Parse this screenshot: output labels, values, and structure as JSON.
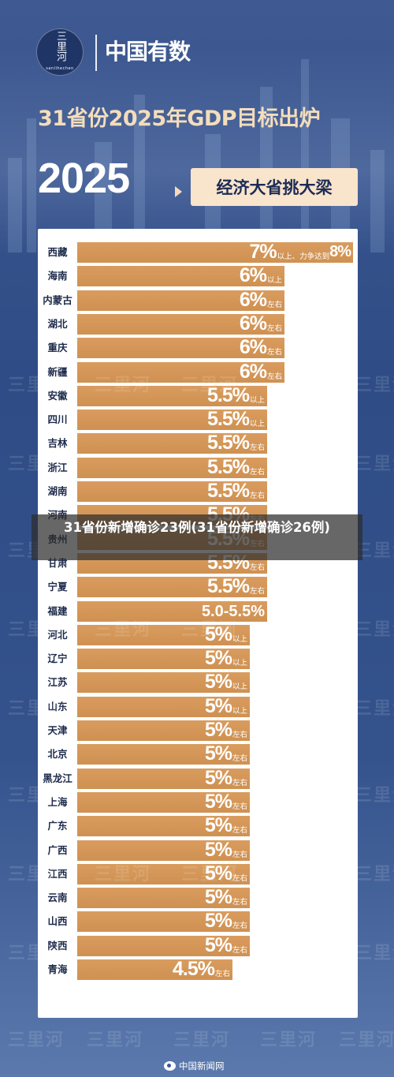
{
  "header": {
    "logo_text": "三里河",
    "logo_sub": "sanlihechen",
    "brand": "中国有数"
  },
  "headline": "31省份2025年GDP目标出炉",
  "year": "2025",
  "tag": "经济大省挑大梁",
  "overlay_text": "31省份新增确诊23例(31省份新增确诊26例)",
  "watermark": "三里河",
  "credit": "中国新闻网",
  "chart_data": {
    "type": "bar",
    "orientation": "horizontal",
    "title": "31省份2025年GDP目标出炉",
    "unit": "%",
    "xlim": [
      0,
      8
    ],
    "categories": [
      "西藏",
      "海南",
      "内蒙古",
      "湖北",
      "重庆",
      "新疆",
      "安徽",
      "四川",
      "吉林",
      "浙江",
      "湖南",
      "河南",
      "贵州",
      "甘肃",
      "宁夏",
      "福建",
      "河北",
      "辽宁",
      "江苏",
      "山东",
      "天津",
      "北京",
      "黑龙江",
      "上海",
      "广东",
      "广西",
      "江西",
      "云南",
      "山西",
      "陕西",
      "青海"
    ],
    "values": [
      8,
      6,
      6,
      6,
      6,
      6,
      5.5,
      5.5,
      5.5,
      5.5,
      5.5,
      5.5,
      5.5,
      5.5,
      5.5,
      5.5,
      5,
      5,
      5,
      5,
      5,
      5,
      5,
      5,
      5,
      5,
      5,
      5,
      5,
      5,
      4.5
    ],
    "labels": [
      "7%以上、力争达到8%",
      "6%以上",
      "6%左右",
      "6%左右",
      "6%左右",
      "6%左右",
      "5.5%以上",
      "5.5%以上",
      "5.5%左右",
      "5.5%左右",
      "5.5%左右",
      "5.5%左右",
      "5.5%左右",
      "5.5%左右",
      "5.5%左右",
      "5.0-5.5%",
      "5%以上",
      "5%以上",
      "5%以上",
      "5%以上",
      "5%左右",
      "5%左右",
      "5%左右",
      "5%左右",
      "5%左右",
      "5%左右",
      "5%左右",
      "5%左右",
      "5%左右",
      "5%左右",
      "4.5%左右"
    ],
    "label_parts": [
      [
        "7%",
        "以上、力争达到",
        "8%"
      ],
      [
        "6%",
        "以上"
      ],
      [
        "6%",
        "左右"
      ],
      [
        "6%",
        "左右"
      ],
      [
        "6%",
        "左右"
      ],
      [
        "6%",
        "左右"
      ],
      [
        "5.5%",
        "以上"
      ],
      [
        "5.5%",
        "以上"
      ],
      [
        "5.5%",
        "左右"
      ],
      [
        "5.5%",
        "左右"
      ],
      [
        "5.5%",
        "左右"
      ],
      [
        "5.5%",
        "左右"
      ],
      [
        "5.5%",
        "左右"
      ],
      [
        "5.5%",
        "左右"
      ],
      [
        "5.5%",
        "左右"
      ],
      [
        "5.0-5.5%",
        ""
      ],
      [
        "5%",
        "以上"
      ],
      [
        "5%",
        "以上"
      ],
      [
        "5%",
        "以上"
      ],
      [
        "5%",
        "以上"
      ],
      [
        "5%",
        "左右"
      ],
      [
        "5%",
        "左右"
      ],
      [
        "5%",
        "左右"
      ],
      [
        "5%",
        "左右"
      ],
      [
        "5%",
        "左右"
      ],
      [
        "5%",
        "左右"
      ],
      [
        "5%",
        "左右"
      ],
      [
        "5%",
        "左右"
      ],
      [
        "5%",
        "左右"
      ],
      [
        "5%",
        "左右"
      ],
      [
        "4.5%",
        "左右"
      ]
    ],
    "bar_color": "#cf9152",
    "grid": false,
    "legend": "none"
  }
}
